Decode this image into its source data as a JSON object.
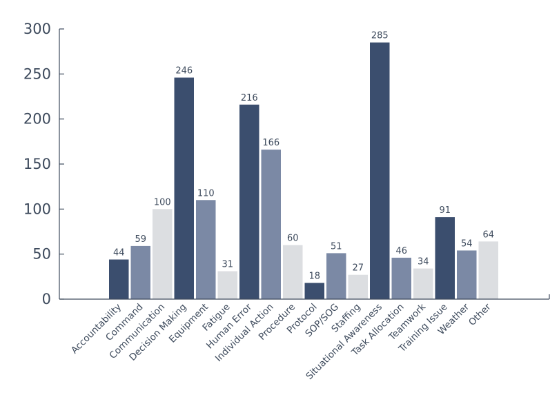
{
  "chart_data": {
    "type": "bar",
    "title": "",
    "xlabel": "",
    "ylabel": "",
    "ylim": [
      0,
      300
    ],
    "yticks": [
      0,
      50,
      100,
      150,
      200,
      250,
      300
    ],
    "grid": false,
    "legend": "none",
    "categories": [
      "Accountability",
      "Command",
      "Communication",
      "Decision Making",
      "Equipment",
      "Fatigue",
      "Human Error",
      "Individual Action",
      "Procedure",
      "Protocol",
      "SOP/SOG",
      "Staffing",
      "Situational Awareness",
      "Task Allocation",
      "Teamwork",
      "Training Issue",
      "Weather",
      "Other"
    ],
    "values": [
      44,
      59,
      100,
      246,
      110,
      31,
      216,
      166,
      60,
      18,
      51,
      27,
      285,
      46,
      34,
      91,
      54,
      64
    ],
    "bar_colors": [
      "#3b4e6e",
      "#7b89a5",
      "#dcdee1",
      "#3b4e6e",
      "#7b89a5",
      "#dcdee1",
      "#3b4e6e",
      "#7b89a5",
      "#dcdee1",
      "#3b4e6e",
      "#7b89a5",
      "#dcdee1",
      "#3b4e6e",
      "#7b89a5",
      "#dcdee1",
      "#3b4e6e",
      "#7b89a5",
      "#dcdee1"
    ]
  }
}
